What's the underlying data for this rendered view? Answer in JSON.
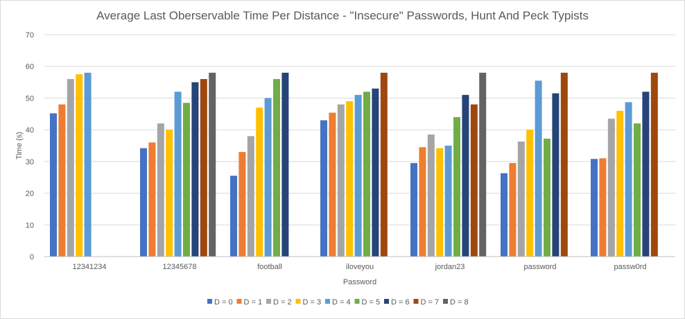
{
  "chart_data": {
    "type": "bar",
    "title": "Average Last Oberservable Time Per Distance - \"Insecure\" Passwords, Hunt And Peck Typists",
    "xlabel": "Password",
    "ylabel": "Time (s)",
    "ylim": [
      0,
      70
    ],
    "yticks": [
      0,
      10,
      20,
      30,
      40,
      50,
      60,
      70
    ],
    "grid": true,
    "legend_position": "bottom",
    "categories": [
      "12341234",
      "12345678",
      "football",
      "iloveyou",
      "jordan23",
      "password",
      "passw0rd"
    ],
    "series": [
      {
        "name": "D = 0",
        "color": "#4472c4",
        "values": [
          45.2,
          34.2,
          25.5,
          43,
          29.5,
          26.3,
          30.8
        ]
      },
      {
        "name": "D = 1",
        "color": "#ed7d31",
        "values": [
          48,
          36,
          33,
          45.4,
          34.5,
          29.5,
          31
        ]
      },
      {
        "name": "D = 2",
        "color": "#a5a5a5",
        "values": [
          56,
          42,
          38,
          48,
          38.5,
          36.3,
          43.5
        ]
      },
      {
        "name": "D = 3",
        "color": "#ffc000",
        "values": [
          57.5,
          40,
          47,
          49,
          34.2,
          40,
          46
        ]
      },
      {
        "name": "D = 4",
        "color": "#5b9bd5",
        "values": [
          58,
          52,
          50,
          51,
          35,
          55.5,
          48.7
        ]
      },
      {
        "name": "D = 5",
        "color": "#70ad47",
        "values": [
          null,
          48.5,
          56,
          52,
          44,
          37.2,
          42
        ]
      },
      {
        "name": "D = 6",
        "color": "#264478",
        "values": [
          null,
          55,
          58,
          53,
          51,
          51.5,
          52
        ]
      },
      {
        "name": "D = 7",
        "color": "#9e480e",
        "values": [
          null,
          56,
          null,
          58,
          48,
          58,
          58
        ]
      },
      {
        "name": "D = 8",
        "color": "#636363",
        "values": [
          null,
          58,
          null,
          null,
          58,
          null,
          null
        ]
      }
    ]
  }
}
